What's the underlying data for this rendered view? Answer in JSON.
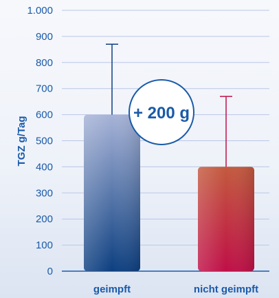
{
  "chart_data": {
    "type": "bar",
    "ylabel": "TGZ g/Tag",
    "xlabel": "",
    "ylim": [
      0,
      1000
    ],
    "yticks": [
      0,
      100,
      200,
      300,
      400,
      500,
      600,
      700,
      800,
      900,
      1000
    ],
    "ytick_labels": [
      "0",
      "100",
      "200",
      "300",
      "400",
      "500",
      "600",
      "700",
      "800",
      "900",
      "1.000"
    ],
    "categories": [
      "geimpft",
      "nicht geimpft"
    ],
    "values": [
      600,
      400
    ],
    "error_upper": [
      870,
      670
    ],
    "bar_colors": [
      {
        "top": "#a7b3d7",
        "bottom": "#0d3f80"
      },
      {
        "top": "#c35a3e",
        "bottom": "#bf0f47"
      }
    ],
    "grid": true,
    "annotation": {
      "text": "+ 200 g",
      "color": "#1a5aa8"
    },
    "gridline_color": "#b9c7e6",
    "axis_color": "#1a5aa8"
  }
}
